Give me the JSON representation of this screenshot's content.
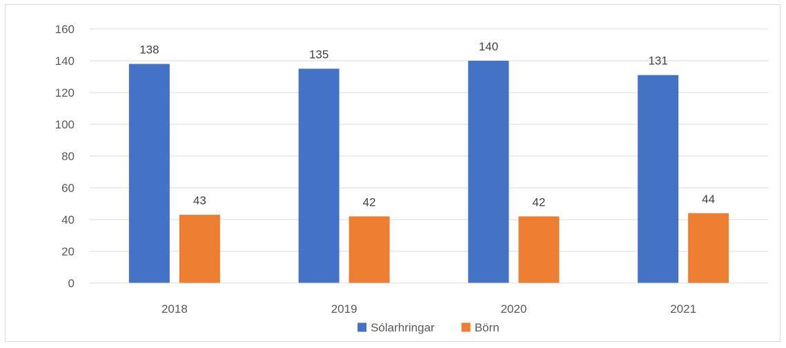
{
  "chart_data": {
    "type": "bar",
    "title": "",
    "xlabel": "",
    "ylabel": "",
    "categories": [
      "2018",
      "2019",
      "2020",
      "2021"
    ],
    "series": [
      {
        "name": "Sólarhringar",
        "values": [
          138,
          135,
          140,
          131
        ],
        "color": "#4472C4"
      },
      {
        "name": "Börn",
        "values": [
          43,
          42,
          42,
          44
        ],
        "color": "#ED7D31"
      }
    ],
    "ylim": [
      0,
      160
    ],
    "yticks": [
      "0",
      "20",
      "40",
      "60",
      "80",
      "100",
      "120",
      "140",
      "160"
    ],
    "grid": true,
    "legend": "bottom",
    "data_labels": true
  }
}
